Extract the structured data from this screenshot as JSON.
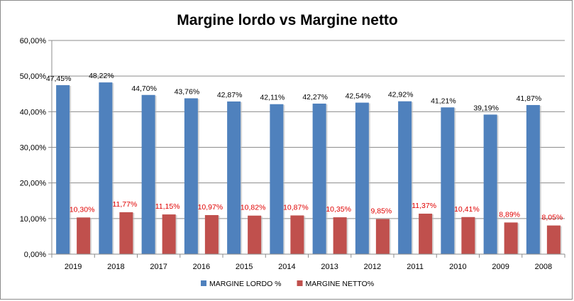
{
  "chart_data": {
    "type": "bar",
    "title": "Margine lordo vs Margine netto",
    "categories": [
      "2019",
      "2018",
      "2017",
      "2016",
      "2015",
      "2014",
      "2013",
      "2012",
      "2011",
      "2010",
      "2009",
      "2008"
    ],
    "series": [
      {
        "name": "MARGINE LORDO %",
        "color": "#4f81bd",
        "label_color": "#000000",
        "values": [
          47.45,
          48.22,
          44.7,
          43.76,
          42.87,
          42.11,
          42.27,
          42.54,
          42.92,
          41.21,
          39.19,
          41.87
        ],
        "labels": [
          "47,45%",
          "48,22%",
          "44,70%",
          "43,76%",
          "42,87%",
          "42,11%",
          "42,27%",
          "42,54%",
          "42,92%",
          "41,21%",
          "39,19%",
          "41,87%"
        ]
      },
      {
        "name": "MARGINE NETTO%",
        "color": "#c0504d",
        "label_color": "#e00000",
        "values": [
          10.3,
          11.77,
          11.15,
          10.97,
          10.82,
          10.87,
          10.35,
          9.85,
          11.37,
          10.41,
          8.89,
          8.05
        ],
        "labels": [
          "10,30%",
          "11,77%",
          "11,15%",
          "10,97%",
          "10,82%",
          "10,87%",
          "10,35%",
          "9,85%",
          "11,37%",
          "10,41%",
          "8,89%",
          "8,05%"
        ]
      }
    ],
    "y_ticks": [
      "0,00%",
      "10,00%",
      "20,00%",
      "30,00%",
      "40,00%",
      "50,00%",
      "60,00%"
    ],
    "ylim": [
      0,
      60
    ],
    "grid": true,
    "legend_position": "bottom"
  }
}
